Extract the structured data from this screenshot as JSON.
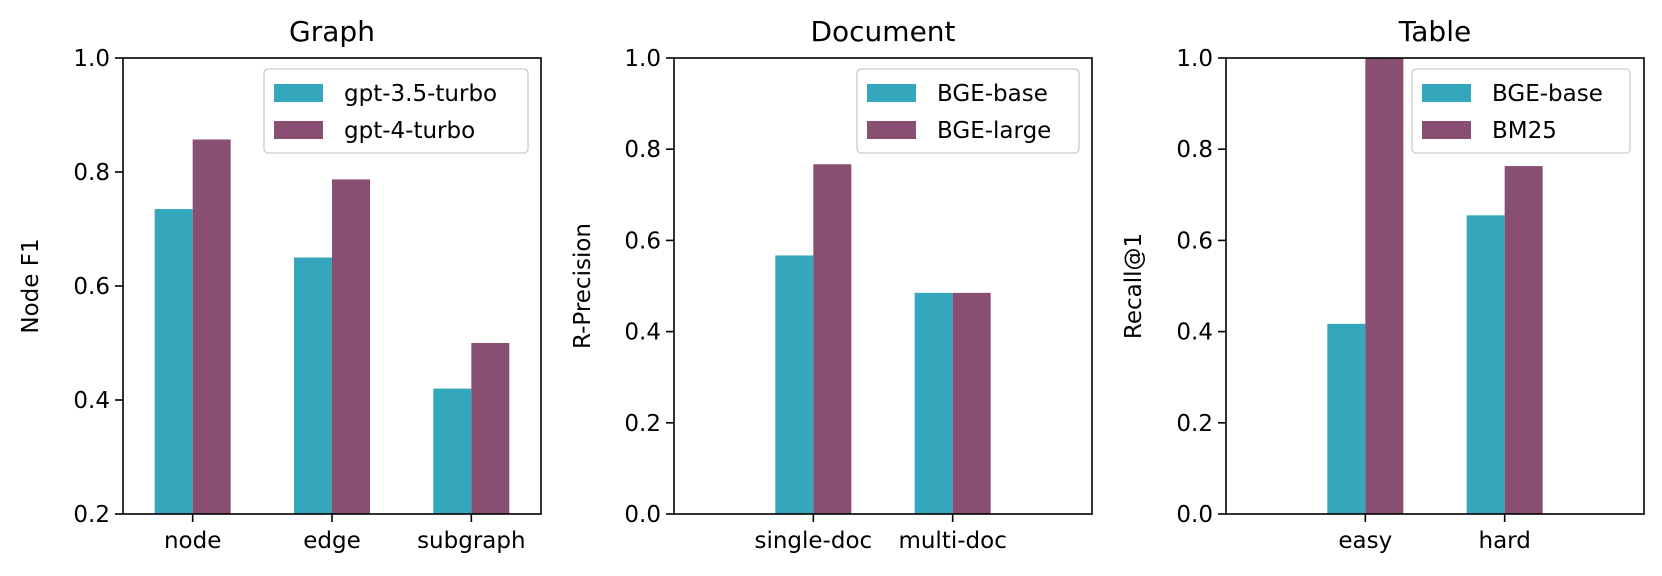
{
  "colors": {
    "series1": "#35A7BD",
    "series2": "#884F73"
  },
  "chart_data": [
    {
      "type": "bar",
      "title": "Graph",
      "xlabel": "",
      "ylabel": "Node F1",
      "ylim": [
        0.2,
        1.0
      ],
      "yticks": [
        "0.2",
        "0.4",
        "0.6",
        "0.8",
        "1.0"
      ],
      "ytick_values": [
        0.2,
        0.4,
        0.6,
        0.8,
        1.0
      ],
      "categories": [
        "node",
        "edge",
        "subgraph"
      ],
      "legend_position": "top-right",
      "series": [
        {
          "name": "gpt-3.5-turbo",
          "values": [
            0.735,
            0.65,
            0.42
          ]
        },
        {
          "name": "gpt-4-turbo",
          "values": [
            0.857,
            0.787,
            0.5
          ]
        }
      ]
    },
    {
      "type": "bar",
      "title": "Document",
      "xlabel": "",
      "ylabel": "R-Precision",
      "ylim": [
        0.0,
        1.0
      ],
      "yticks": [
        "0.0",
        "0.2",
        "0.4",
        "0.6",
        "0.8",
        "1.0"
      ],
      "ytick_values": [
        0.0,
        0.2,
        0.4,
        0.6,
        0.8,
        1.0
      ],
      "categories": [
        "single-doc",
        "multi-doc"
      ],
      "legend_position": "top-right",
      "series": [
        {
          "name": "BGE-base",
          "values": [
            0.567,
            0.485
          ]
        },
        {
          "name": "BGE-large",
          "values": [
            0.767,
            0.485
          ]
        }
      ]
    },
    {
      "type": "bar",
      "title": "Table",
      "xlabel": "",
      "ylabel": "Recall@1",
      "ylim": [
        0.0,
        1.0
      ],
      "yticks": [
        "0.0",
        "0.2",
        "0.4",
        "0.6",
        "0.8",
        "1.0"
      ],
      "ytick_values": [
        0.0,
        0.2,
        0.4,
        0.6,
        0.8,
        1.0
      ],
      "categories": [
        "easy",
        "hard"
      ],
      "legend_position": "top-right",
      "series": [
        {
          "name": "BGE-base",
          "values": [
            0.417,
            0.655
          ]
        },
        {
          "name": "BM25",
          "values": [
            1.0,
            0.763
          ]
        }
      ]
    }
  ]
}
